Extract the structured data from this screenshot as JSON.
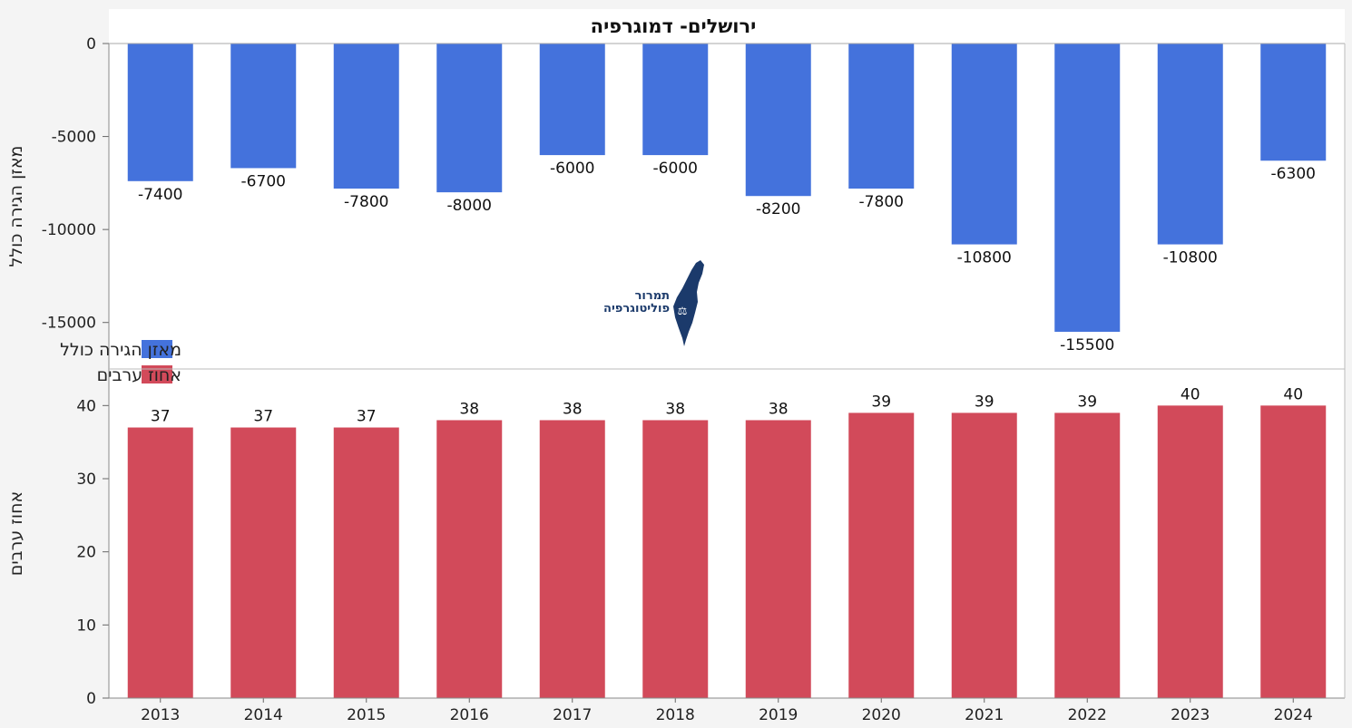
{
  "chart_data": [
    {
      "type": "bar",
      "title": "ירושלים- דמוגרפיה",
      "ylabel": "מאזן הגירה כולל",
      "categories": [
        "2013",
        "2014",
        "2015",
        "2016",
        "2017",
        "2018",
        "2019",
        "2020",
        "2021",
        "2022",
        "2023",
        "2024"
      ],
      "series": [
        {
          "name": "מאזן הגירה כולל",
          "color": "#4472dc",
          "values": [
            -7400,
            -6700,
            -7800,
            -8000,
            -6000,
            -6000,
            -8200,
            -7800,
            -10800,
            -15500,
            -10800,
            -6300
          ]
        }
      ],
      "ylim": [
        -17500,
        0
      ],
      "yticks": [
        0,
        -5000,
        -10000,
        -15000
      ],
      "grid": false,
      "data_labels": true
    },
    {
      "type": "bar",
      "ylabel": "אחוז ערבים",
      "categories": [
        "2013",
        "2014",
        "2015",
        "2016",
        "2017",
        "2018",
        "2019",
        "2020",
        "2021",
        "2022",
        "2023",
        "2024"
      ],
      "series": [
        {
          "name": "אחוז ערבים",
          "color": "#d24a5a",
          "values": [
            37,
            37,
            37,
            38,
            38,
            38,
            38,
            39,
            39,
            39,
            40,
            40
          ]
        }
      ],
      "ylim": [
        0,
        45
      ],
      "yticks": [
        0,
        10,
        20,
        30,
        40
      ],
      "grid": false,
      "data_labels": true
    }
  ],
  "legend": {
    "placement": "lower-left of top panel",
    "items": [
      {
        "label": "מאזן הגירה כולל",
        "color": "#4472dc"
      },
      {
        "label": "אחוז ערבים",
        "color": "#d24a5a"
      }
    ]
  },
  "logo": {
    "line1": "תמרור",
    "line2": "פוליטוגרפיה",
    "color": "#1b3a6b"
  }
}
